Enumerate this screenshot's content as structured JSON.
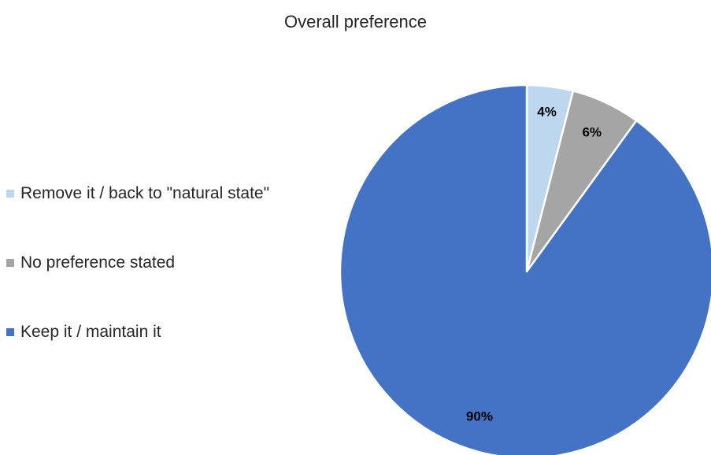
{
  "chart_data": {
    "type": "pie",
    "title": "Overall preference",
    "legend_position": "left",
    "categories": [
      "Remove it / back to \"natural state\"",
      "No preference stated",
      "Keep it / maintain it"
    ],
    "values": [
      4,
      6,
      90
    ],
    "data_labels": [
      "4%",
      "6%",
      "90%"
    ],
    "colors": [
      "#BDD7EE",
      "#A5A5A5",
      "#4472C4"
    ]
  }
}
